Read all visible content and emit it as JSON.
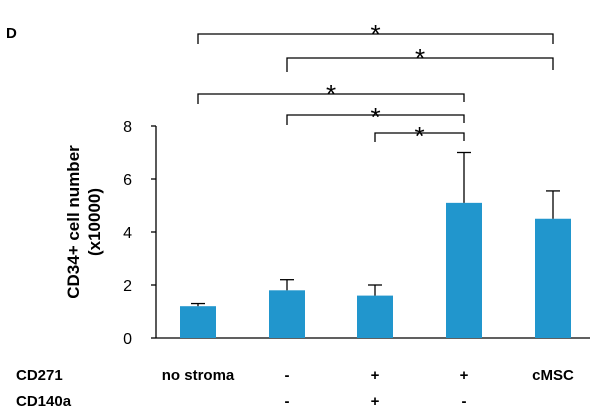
{
  "panel_label": "D",
  "colors": {
    "bar": "#2196CD",
    "axis": "#000000"
  },
  "chart_data": {
    "type": "bar",
    "title": "",
    "ylabel_line1": "CD34+ cell number",
    "ylabel_line2": "(x10000)",
    "ylim": [
      0,
      8
    ],
    "yticks": [
      "0",
      "2",
      "4",
      "6",
      "8"
    ],
    "grid": false,
    "values": [
      1.2,
      1.8,
      1.6,
      5.1,
      4.5
    ],
    "error_upper": [
      1.3,
      2.2,
      2.0,
      7.0,
      5.55
    ],
    "categories": [
      "no stroma",
      "-",
      "+",
      "+",
      "cMSC"
    ],
    "condition_rows": [
      {
        "label": "CD271",
        "values": [
          "no stroma",
          "-",
          "+",
          "+",
          "cMSC"
        ]
      },
      {
        "label": "CD140a",
        "values": [
          "",
          "-",
          "+",
          "-",
          ""
        ]
      }
    ],
    "significance": [
      {
        "from": 0,
        "to": 4,
        "label": "*"
      },
      {
        "from": 1,
        "to": 4,
        "label": "*"
      },
      {
        "from": 0,
        "to": 3,
        "label": "*"
      },
      {
        "from": 1,
        "to": 3,
        "label": "*"
      },
      {
        "from": 2,
        "to": 3,
        "label": "*"
      }
    ]
  }
}
